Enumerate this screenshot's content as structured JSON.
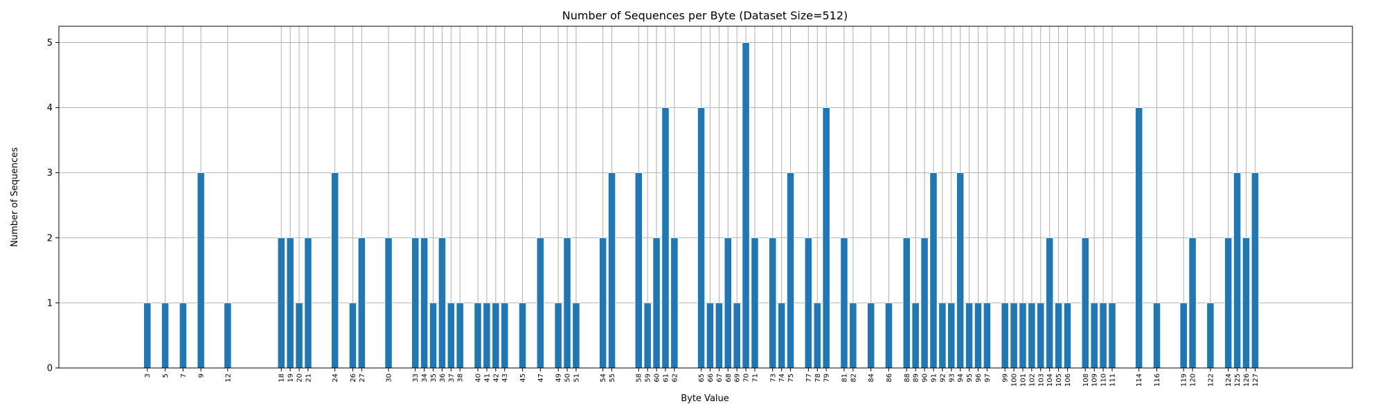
{
  "chart_data": {
    "type": "bar",
    "title": "Number of Sequences per Byte (Dataset Size=512)",
    "xlabel": "Byte Value",
    "ylabel": "Number of Sequences",
    "ylim": [
      0,
      5.25
    ],
    "yticks": [
      0,
      1,
      2,
      3,
      4,
      5
    ],
    "xlim": [
      -6.9,
      137.9
    ],
    "grid": true,
    "bar_color": "#1f77b4",
    "categories": [
      "3",
      "5",
      "7",
      "9",
      "12",
      "18",
      "19",
      "20",
      "21",
      "24",
      "26",
      "27",
      "30",
      "33",
      "34",
      "35",
      "36",
      "37",
      "38",
      "40",
      "41",
      "42",
      "43",
      "45",
      "47",
      "49",
      "50",
      "51",
      "54",
      "55",
      "58",
      "59",
      "60",
      "61",
      "62",
      "65",
      "66",
      "67",
      "68",
      "69",
      "70",
      "71",
      "73",
      "74",
      "75",
      "77",
      "78",
      "79",
      "81",
      "82",
      "84",
      "86",
      "88",
      "89",
      "90",
      "91",
      "92",
      "93",
      "94",
      "95",
      "96",
      "97",
      "99",
      "100",
      "101",
      "102",
      "103",
      "104",
      "105",
      "106",
      "108",
      "109",
      "110",
      "111",
      "114",
      "116",
      "119",
      "120",
      "122",
      "124",
      "125",
      "126",
      "127"
    ],
    "values": [
      1,
      1,
      1,
      3,
      1,
      2,
      2,
      1,
      2,
      3,
      1,
      2,
      2,
      2,
      2,
      1,
      2,
      1,
      1,
      1,
      1,
      1,
      1,
      1,
      2,
      1,
      2,
      1,
      2,
      3,
      3,
      1,
      2,
      4,
      2,
      4,
      1,
      1,
      2,
      1,
      5,
      2,
      2,
      1,
      3,
      2,
      1,
      4,
      2,
      1,
      1,
      1,
      2,
      1,
      2,
      3,
      1,
      1,
      3,
      1,
      1,
      1,
      1,
      1,
      1,
      1,
      1,
      2,
      1,
      1,
      2,
      1,
      1,
      1,
      4,
      1,
      1,
      2,
      1,
      2,
      3,
      2,
      3
    ]
  }
}
